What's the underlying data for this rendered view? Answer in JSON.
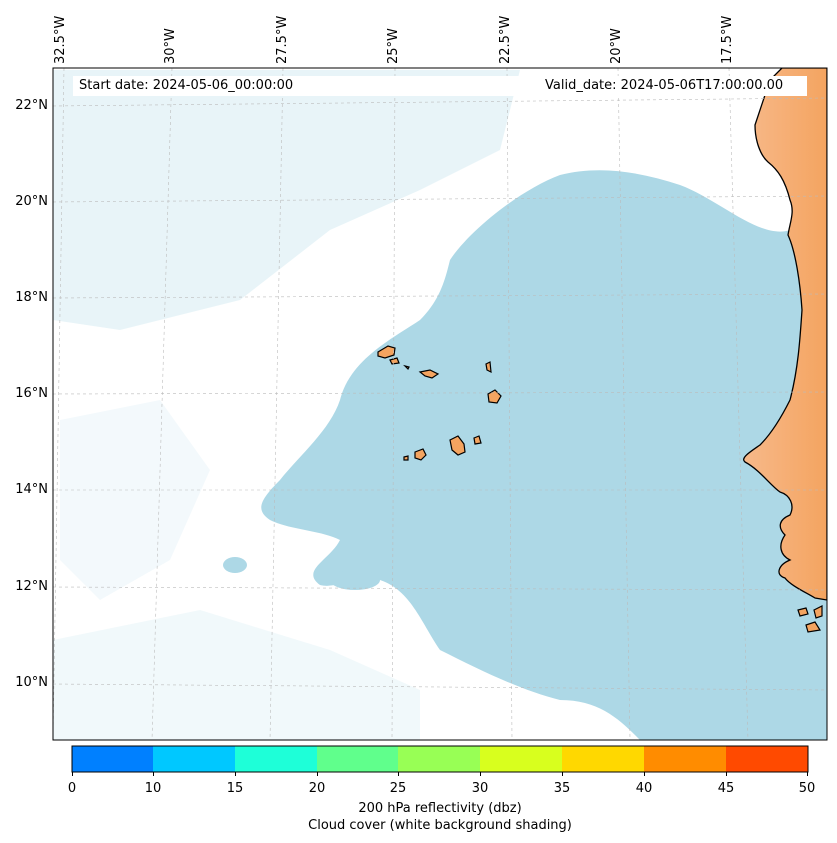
{
  "header": {
    "start_date": "Start date: 2024-05-06_00:00:00",
    "valid_date": "Valid_date: 2024-05-06T17:00:00.00"
  },
  "longitude_labels": [
    "32.5°W",
    "30°W",
    "27.5°W",
    "25°W",
    "22.5°W",
    "20°W",
    "17.5°W"
  ],
  "latitude_labels": [
    "22°N",
    "20°N",
    "18°N",
    "16°N",
    "14°N",
    "12°N",
    "10°N"
  ],
  "colorbar": {
    "ticks": [
      "0",
      "10",
      "15",
      "20",
      "25",
      "30",
      "35",
      "40",
      "45",
      "50"
    ],
    "colors": [
      "#0080ff",
      "#00c8ff",
      "#1effd8",
      "#60ff8c",
      "#98ff55",
      "#d8ff1e",
      "#ffd800",
      "#ff8c00",
      "#ff4a00"
    ],
    "label": "200 hPa reflectivity (dbz)",
    "sublabel": "Cloud cover (white background shading)"
  },
  "colors": {
    "land": "#f4a460",
    "cloud": "#add8e6",
    "coastline": "#000000"
  }
}
